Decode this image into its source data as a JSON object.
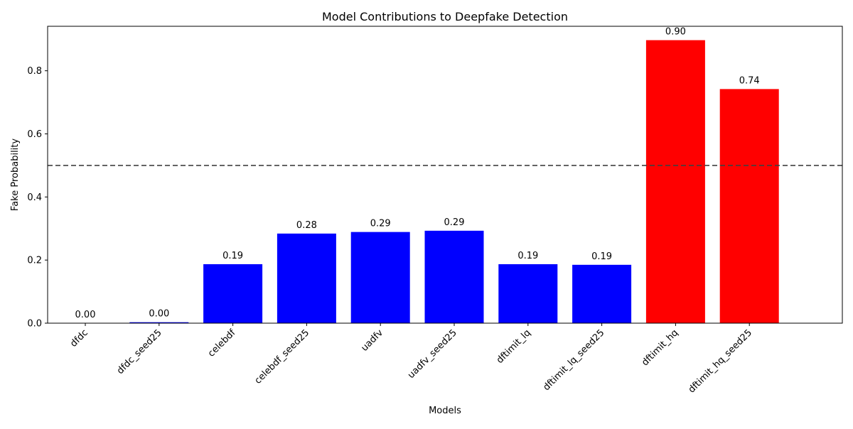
{
  "chart_data": {
    "type": "bar",
    "title": "Model Contributions to Deepfake Detection",
    "xlabel": "Models",
    "ylabel": "Fake Probability",
    "categories": [
      "dfdc",
      "dfdc_seed25",
      "celebdf",
      "celebdf_seed25",
      "uadfv",
      "uadfv_seed25",
      "dftimit_lq",
      "dftimit_lq_seed25",
      "dftimit_hq",
      "dftimit_hq_seed25"
    ],
    "values": [
      0.0005,
      0.003,
      0.187,
      0.284,
      0.289,
      0.293,
      0.187,
      0.185,
      0.897,
      0.742
    ],
    "value_labels": [
      "0.00",
      "0.00",
      "0.19",
      "0.28",
      "0.29",
      "0.29",
      "0.19",
      "0.19",
      "0.90",
      "0.74"
    ],
    "bar_colors": [
      "#0000ff",
      "#0000ff",
      "#0000ff",
      "#0000ff",
      "#0000ff",
      "#0000ff",
      "#0000ff",
      "#0000ff",
      "#ff0000",
      "#ff0000"
    ],
    "ylim": [
      0,
      0.941
    ],
    "yticks": [
      0.0,
      0.2,
      0.4,
      0.6,
      0.8
    ],
    "ytick_labels": [
      "0.0",
      "0.2",
      "0.4",
      "0.6",
      "0.8"
    ],
    "threshold": {
      "value": 0.5,
      "style": "dashed",
      "color": "#404040"
    },
    "grid": false,
    "legend": "none"
  }
}
